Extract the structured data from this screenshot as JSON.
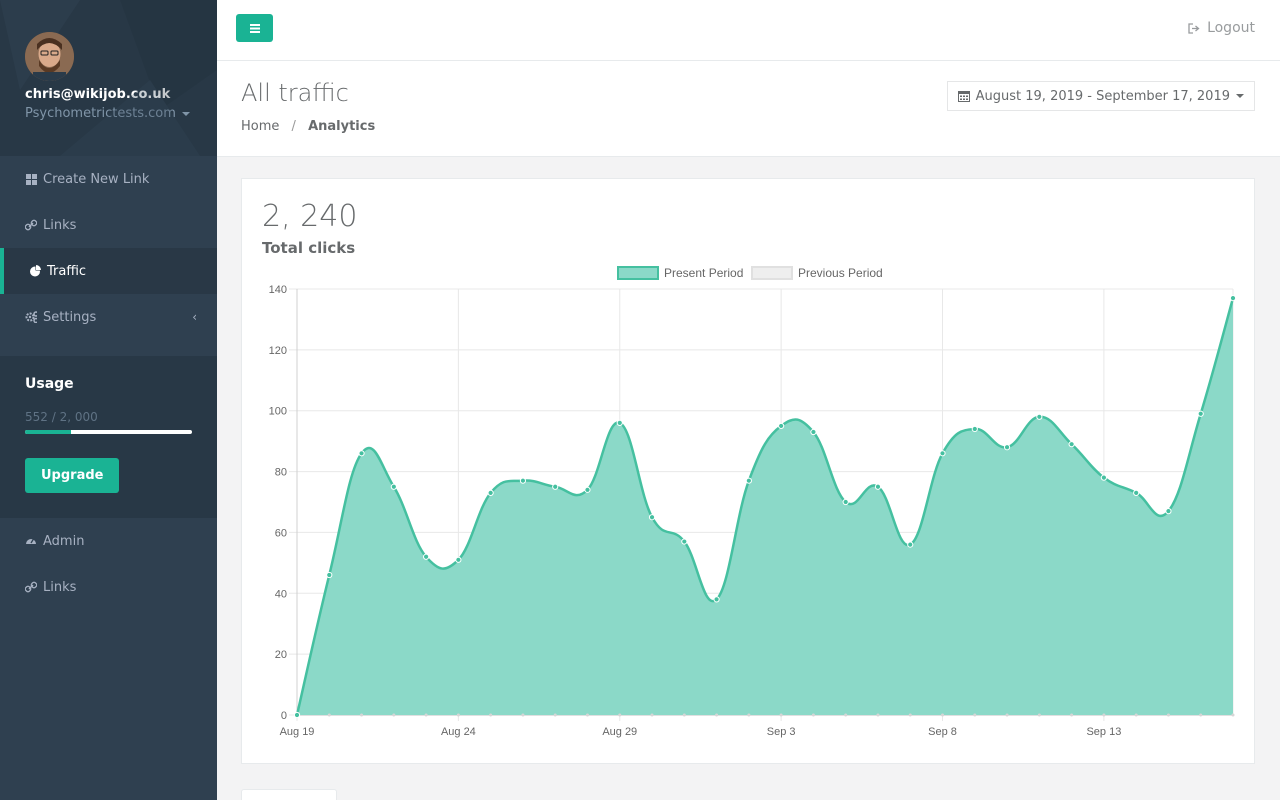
{
  "profile": {
    "email": "chris@wikijob.co.uk",
    "domain": "Psychometrictests.com"
  },
  "sidebar": {
    "items": [
      {
        "label": "Create New Link",
        "icon": "grid-icon"
      },
      {
        "label": "Links",
        "icon": "link-icon"
      },
      {
        "label": "Traffic",
        "icon": "pie-chart-icon"
      },
      {
        "label": "Settings",
        "icon": "gears-icon"
      }
    ],
    "admin_items": [
      {
        "label": "Admin",
        "icon": "dashboard-icon"
      },
      {
        "label": "Links",
        "icon": "link-icon"
      }
    ]
  },
  "usage": {
    "title": "Usage",
    "amount_text": "552 / 2, 000",
    "used": 552,
    "limit": 2000,
    "upgrade_label": "Upgrade"
  },
  "topbar": {
    "logout_label": "Logout"
  },
  "heading": {
    "title": "All traffic",
    "breadcrumb_home": "Home",
    "breadcrumb_sep": "/",
    "breadcrumb_current": "Analytics"
  },
  "daterange": {
    "label": "August 19, 2019 - September 17, 2019"
  },
  "summary": {
    "total": "2, 240",
    "label": "Total clicks"
  },
  "colors": {
    "accent": "#1ab394",
    "sidebar": "#2f4050",
    "area_fill": "#8bd9c8",
    "line": "#45c0a0"
  },
  "chart_data": {
    "type": "area",
    "title": "",
    "xlabel": "",
    "ylabel": "",
    "ylim": [
      0,
      140
    ],
    "yticks": [
      0,
      20,
      40,
      60,
      80,
      100,
      120,
      140
    ],
    "x_tick_labels": [
      {
        "index": 0,
        "label": "Aug 19"
      },
      {
        "index": 5,
        "label": "Aug 24"
      },
      {
        "index": 10,
        "label": "Aug 29"
      },
      {
        "index": 15,
        "label": "Sep 3"
      },
      {
        "index": 20,
        "label": "Sep 8"
      },
      {
        "index": 25,
        "label": "Sep 13"
      }
    ],
    "categories": [
      "Aug 19",
      "Aug 20",
      "Aug 21",
      "Aug 22",
      "Aug 23",
      "Aug 24",
      "Aug 25",
      "Aug 26",
      "Aug 27",
      "Aug 28",
      "Aug 29",
      "Aug 30",
      "Aug 31",
      "Sep 1",
      "Sep 2",
      "Sep 3",
      "Sep 4",
      "Sep 5",
      "Sep 6",
      "Sep 7",
      "Sep 8",
      "Sep 9",
      "Sep 10",
      "Sep 11",
      "Sep 12",
      "Sep 13",
      "Sep 14",
      "Sep 15",
      "Sep 16",
      "Sep 17"
    ],
    "series": [
      {
        "name": "Present Period",
        "values": [
          0,
          46,
          86,
          75,
          52,
          51,
          73,
          77,
          75,
          74,
          96,
          65,
          57,
          38,
          77,
          95,
          93,
          70,
          75,
          56,
          86,
          94,
          88,
          98,
          89,
          78,
          73,
          67,
          99,
          137
        ]
      },
      {
        "name": "Previous Period",
        "values": [
          0,
          0,
          0,
          0,
          0,
          0,
          0,
          0,
          0,
          0,
          0,
          0,
          0,
          0,
          0,
          0,
          0,
          0,
          0,
          0,
          0,
          0,
          0,
          0,
          0,
          0,
          0,
          0,
          0,
          0
        ]
      }
    ],
    "legend": "top-center"
  }
}
